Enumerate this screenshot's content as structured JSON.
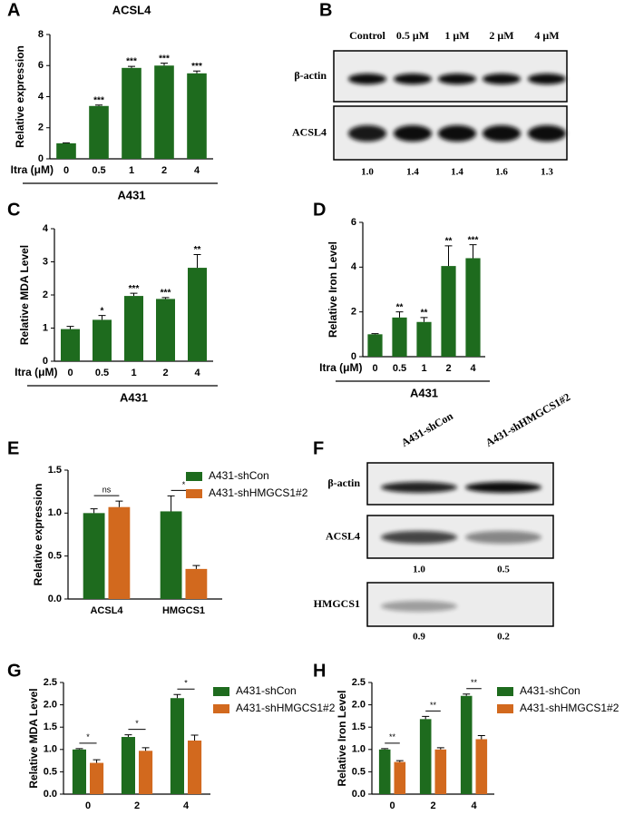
{
  "panel_labels": [
    "A",
    "B",
    "C",
    "D",
    "E",
    "F",
    "G",
    "H"
  ],
  "chart_data": [
    {
      "type": "bar",
      "title": "ACSL4",
      "ylabel": "Relative expression",
      "xlabel": "Itra (μM)",
      "group_label": "A431",
      "color": "#1e6b1e",
      "categories": [
        "0",
        "0.5",
        "1",
        "2",
        "4"
      ],
      "values": [
        1.0,
        3.4,
        5.85,
        6.0,
        5.5
      ],
      "errors": [
        0.03,
        0.06,
        0.1,
        0.15,
        0.15
      ],
      "significance": [
        null,
        "***",
        "***",
        "***",
        "***"
      ],
      "ylim": [
        0,
        8
      ],
      "yticks": [
        0,
        2,
        4,
        6,
        8
      ]
    },
    {
      "type": "bar",
      "ylabel": "Relative MDA Level",
      "xlabel": "Itra (μM)",
      "group_label": "A431",
      "color": "#1e6b1e",
      "categories": [
        "0",
        "0.5",
        "1",
        "2",
        "4"
      ],
      "values": [
        0.97,
        1.25,
        1.97,
        1.88,
        2.82
      ],
      "errors": [
        0.08,
        0.13,
        0.08,
        0.04,
        0.4
      ],
      "significance": [
        null,
        "*",
        "***",
        "***",
        "**"
      ],
      "ylim": [
        0,
        4
      ],
      "yticks": [
        0,
        1,
        2,
        3,
        4
      ]
    },
    {
      "type": "bar",
      "ylabel": "Relative Iron Level",
      "xlabel": "Itra (μM)",
      "group_label": "A431",
      "color": "#1e6b1e",
      "categories": [
        "0",
        "0.5",
        "1",
        "2",
        "4"
      ],
      "values": [
        1.0,
        1.75,
        1.55,
        4.05,
        4.4
      ],
      "errors": [
        0.03,
        0.25,
        0.2,
        0.9,
        0.6
      ],
      "significance": [
        null,
        "**",
        "**",
        "**",
        "***"
      ],
      "ylim": [
        0,
        6
      ],
      "yticks": [
        0,
        2,
        4,
        6
      ]
    },
    {
      "type": "bar",
      "ylabel": "Relative expression",
      "categories": [
        "ACSL4",
        "HMGCS1"
      ],
      "series": [
        {
          "name": "A431-shCon",
          "color": "#1e6b1e",
          "values": [
            1.0,
            1.02
          ],
          "errors": [
            0.05,
            0.18
          ]
        },
        {
          "name": "A431-shHMGCS1#2",
          "color": "#d2691e",
          "values": [
            1.07,
            0.35
          ],
          "errors": [
            0.07,
            0.04
          ]
        }
      ],
      "comparisons": [
        "ns",
        "*"
      ],
      "ylim": [
        0,
        1.5
      ],
      "yticks": [
        {
          "value": 0,
          "label": "0.0"
        },
        0.5,
        {
          "value": 1,
          "label": "1.0"
        },
        1.5
      ]
    },
    {
      "type": "bar",
      "ylabel": "Relative MDA Level",
      "categories": [
        "0",
        "2",
        "4"
      ],
      "series": [
        {
          "name": "A431-shCon",
          "color": "#1e6b1e",
          "values": [
            1.0,
            1.28,
            2.15
          ],
          "errors": [
            0.02,
            0.05,
            0.08
          ]
        },
        {
          "name": "A431-shHMGCS1#2",
          "color": "#d2691e",
          "values": [
            0.7,
            0.97,
            1.2
          ],
          "errors": [
            0.07,
            0.07,
            0.12
          ]
        }
      ],
      "comparisons": [
        "*",
        "*",
        "*"
      ],
      "ylim": [
        0,
        2.5
      ],
      "yticks": [
        {
          "value": 0,
          "label": "0.0"
        },
        0.5,
        {
          "value": 1,
          "label": "1.0"
        },
        1.5,
        {
          "value": 2,
          "label": "2.0"
        },
        2.5
      ]
    },
    {
      "type": "bar",
      "ylabel": "Relative Iron Level",
      "categories": [
        "0",
        "2",
        "4"
      ],
      "series": [
        {
          "name": "A431-shCon",
          "color": "#1e6b1e",
          "values": [
            1.0,
            1.68,
            2.2
          ],
          "errors": [
            0.02,
            0.06,
            0.04
          ]
        },
        {
          "name": "A431-shHMGCS1#2",
          "color": "#d2691e",
          "values": [
            0.72,
            1.0,
            1.23
          ],
          "errors": [
            0.03,
            0.04,
            0.08
          ]
        }
      ],
      "comparisons": [
        "**",
        "**",
        "**"
      ],
      "ylim": [
        0,
        2.5
      ],
      "yticks": [
        {
          "value": 0,
          "label": "0.0"
        },
        0.5,
        {
          "value": 1,
          "label": "1.0"
        },
        1.5,
        {
          "value": 2,
          "label": "2.0"
        },
        2.5
      ]
    }
  ],
  "blots": [
    {
      "lanes": [
        "Control",
        "0.5 μM",
        "1 μM",
        "2 μM",
        "4 μM"
      ],
      "bands": [
        {
          "name": "β-actin"
        },
        {
          "name": "ACSL4",
          "quantification": [
            "1.0",
            "1.4",
            "1.4",
            "1.6",
            "1.3"
          ]
        }
      ]
    },
    {
      "lanes": [
        "A431-shCon",
        "A431-shHMGCS1#2"
      ],
      "bands": [
        {
          "name": "β-actin"
        },
        {
          "name": "ACSL4",
          "quantification": [
            "1.0",
            "0.5"
          ]
        },
        {
          "name": "HMGCS1",
          "quantification": [
            "0.9",
            "0.2"
          ]
        }
      ]
    }
  ]
}
